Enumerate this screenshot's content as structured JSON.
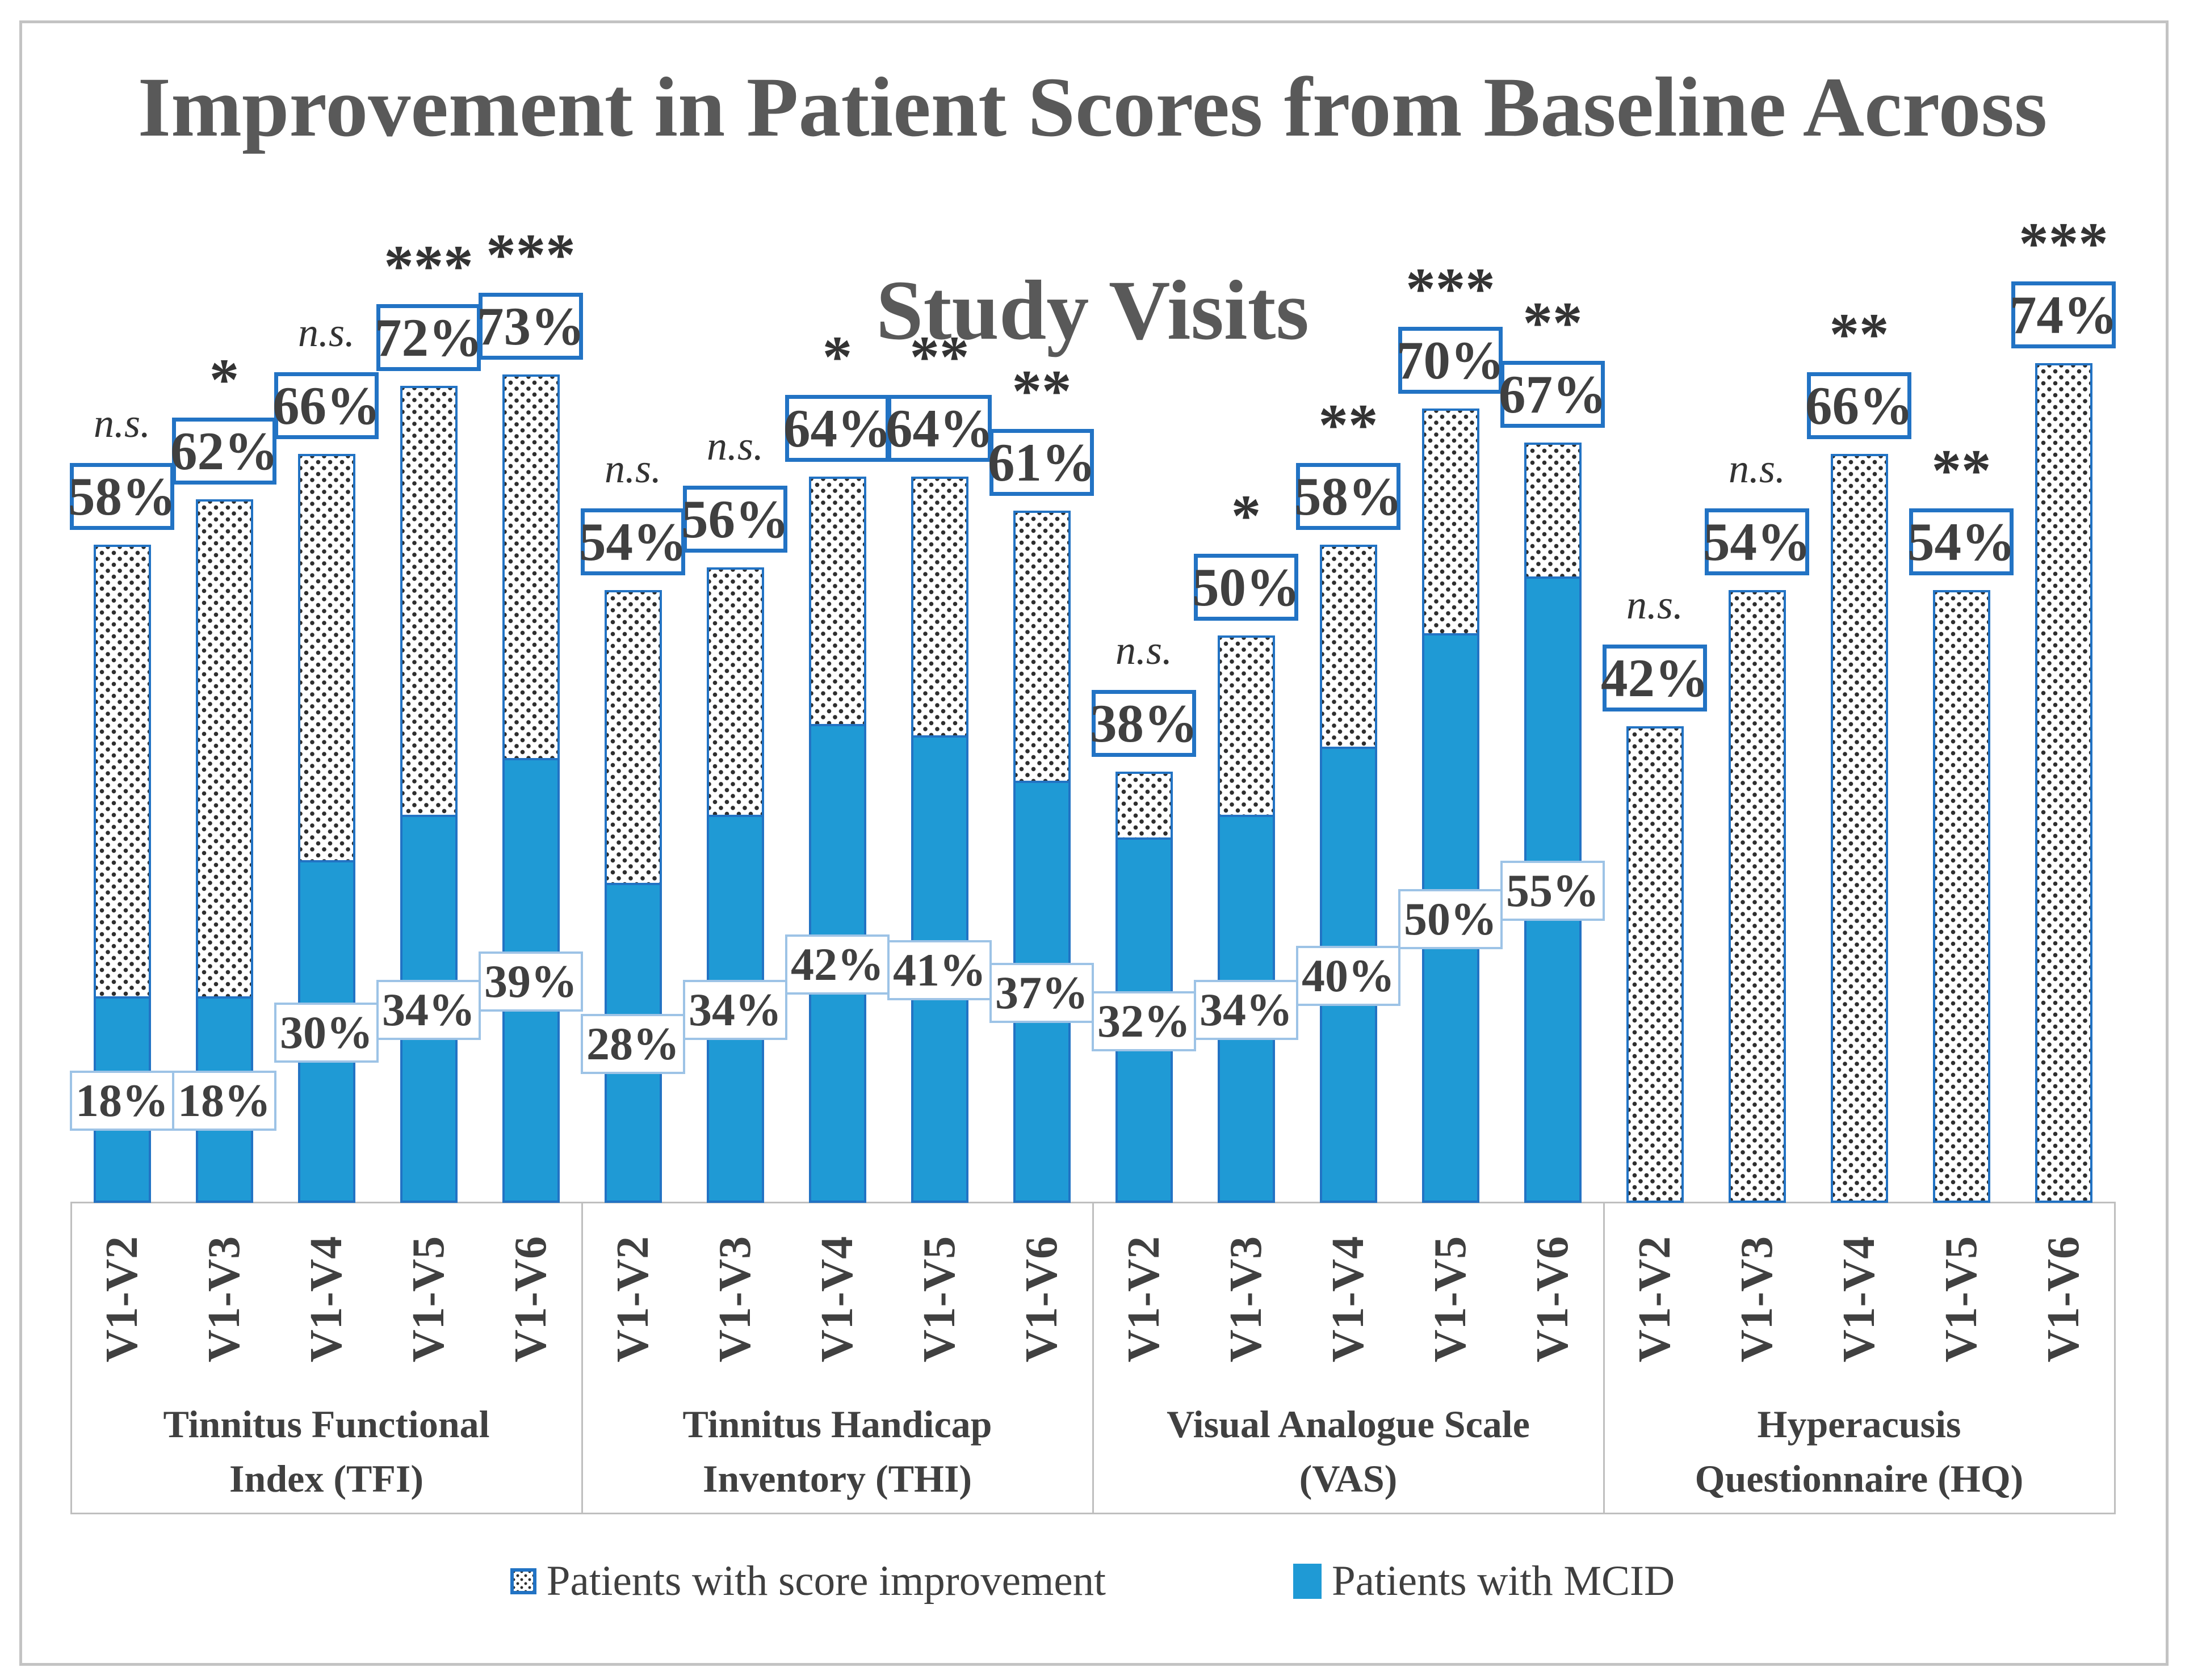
{
  "title": {
    "lines": [
      "Improvement in Patient Scores from Baseline Across",
      "Study Visits"
    ]
  },
  "legend": {
    "items": [
      {
        "label": "Patients with score improvement",
        "swatch": "dotted-pattern"
      },
      {
        "label": "Patients with MCID",
        "swatch": "solid-blue"
      }
    ]
  },
  "colors": {
    "bar_blue": "#1f9ad5",
    "strong_box_border": "#2273c4",
    "light_box_border": "#9dc3e6",
    "title_gray": "#595959",
    "label_text": "#404040",
    "band_line": "#bfbfbf",
    "dot_color": "#2e2e2e"
  },
  "chart_data": {
    "type": "bar",
    "stacked": true,
    "unit": "percent",
    "ylim": [
      0,
      80
    ],
    "grid": false,
    "legend_position": "bottom",
    "series_names": [
      "Patients with score improvement",
      "Patients with MCID"
    ],
    "groups": [
      {
        "label_lines": [
          "Tinnitus Functional",
          "Index (TFI)"
        ],
        "bars": [
          {
            "visit": "V1-V2",
            "improvement": 58,
            "improvement_label": "58%",
            "mcid": 18,
            "mcid_label": "18%",
            "significance": "n.s."
          },
          {
            "visit": "V1-V3",
            "improvement": 62,
            "improvement_label": "62%",
            "mcid": 18,
            "mcid_label": "18%",
            "significance": "*"
          },
          {
            "visit": "V1-V4",
            "improvement": 66,
            "improvement_label": "66%",
            "mcid": 30,
            "mcid_label": "30%",
            "significance": "n.s."
          },
          {
            "visit": "V1-V5",
            "improvement": 72,
            "improvement_label": "72%",
            "mcid": 34,
            "mcid_label": "34%",
            "significance": "***"
          },
          {
            "visit": "V1-V6",
            "improvement": 73,
            "improvement_label": "73%",
            "mcid": 39,
            "mcid_label": "39%",
            "significance": "***"
          }
        ]
      },
      {
        "label_lines": [
          "Tinnitus Handicap",
          "Inventory (THI)"
        ],
        "bars": [
          {
            "visit": "V1-V2",
            "improvement": 54,
            "improvement_label": "54%",
            "mcid": 28,
            "mcid_label": "28%",
            "significance": "n.s."
          },
          {
            "visit": "V1-V3",
            "improvement": 56,
            "improvement_label": "56%",
            "mcid": 34,
            "mcid_label": "34%",
            "significance": "n.s."
          },
          {
            "visit": "V1-V4",
            "improvement": 64,
            "improvement_label": "64%",
            "mcid": 42,
            "mcid_label": "42%",
            "significance": "*"
          },
          {
            "visit": "V1-V5",
            "improvement": 64,
            "improvement_label": "64%",
            "mcid": 41,
            "mcid_label": "41%",
            "significance": "**"
          },
          {
            "visit": "V1-V6",
            "improvement": 61,
            "improvement_label": "61%",
            "mcid": 37,
            "mcid_label": "37%",
            "significance": "**"
          }
        ]
      },
      {
        "label_lines": [
          "Visual Analogue Scale",
          "(VAS)"
        ],
        "bars": [
          {
            "visit": "V1-V2",
            "improvement": 38,
            "improvement_label": "38%",
            "mcid": 32,
            "mcid_label": "32%",
            "significance": "n.s."
          },
          {
            "visit": "V1-V3",
            "improvement": 50,
            "improvement_label": "50%",
            "mcid": 34,
            "mcid_label": "34%",
            "significance": "*"
          },
          {
            "visit": "V1-V4",
            "improvement": 58,
            "improvement_label": "58%",
            "mcid": 40,
            "mcid_label": "40%",
            "significance": "**"
          },
          {
            "visit": "V1-V5",
            "improvement": 70,
            "improvement_label": "70%",
            "mcid": 50,
            "mcid_label": "50%",
            "significance": "***"
          },
          {
            "visit": "V1-V6",
            "improvement": 67,
            "improvement_label": "67%",
            "mcid": 55,
            "mcid_label": "55%",
            "significance": "**"
          }
        ]
      },
      {
        "label_lines": [
          "Hyperacusis",
          "Questionnaire (HQ)"
        ],
        "bars": [
          {
            "visit": "V1-V2",
            "improvement": 42,
            "improvement_label": "42%",
            "mcid": null,
            "mcid_label": null,
            "significance": "n.s."
          },
          {
            "visit": "V1-V3",
            "improvement": 54,
            "improvement_label": "54%",
            "mcid": null,
            "mcid_label": null,
            "significance": "n.s."
          },
          {
            "visit": "V1-V4",
            "improvement": 66,
            "improvement_label": "66%",
            "mcid": null,
            "mcid_label": null,
            "significance": "**"
          },
          {
            "visit": "V1-V5",
            "improvement": 54,
            "improvement_label": "54%",
            "mcid": null,
            "mcid_label": null,
            "significance": "**"
          },
          {
            "visit": "V1-V6",
            "improvement": 74,
            "improvement_label": "74%",
            "mcid": null,
            "mcid_label": null,
            "significance": "***"
          }
        ]
      }
    ]
  }
}
